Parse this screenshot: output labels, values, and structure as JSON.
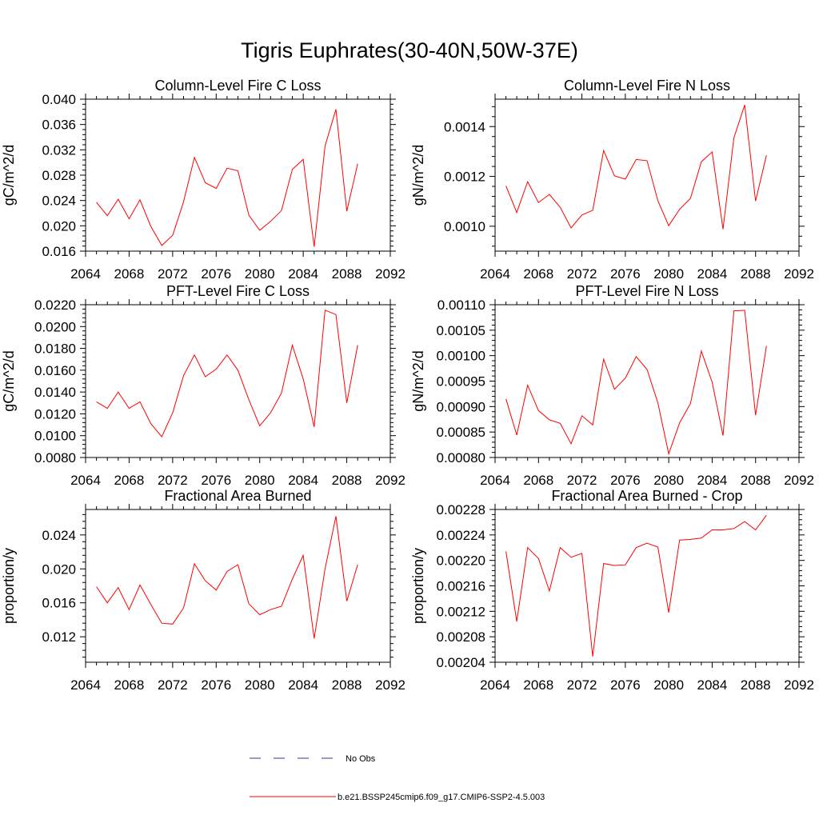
{
  "title": "Tigris Euphrates(30-40N,50W-37E)",
  "legend": [
    {
      "label": "No Obs",
      "color": "#3333aa",
      "dash": true
    },
    {
      "label": "b.e21.BSSP245cmip6.f09_g17.CMIP6-SSP2-4.5.003",
      "color": "#ff0000",
      "dash": false
    }
  ],
  "chart_data": [
    {
      "type": "line",
      "title": "Column-Level Fire C Loss",
      "ylabel": "gC/m^2/d",
      "xlim": [
        2064,
        2092
      ],
      "ylim": [
        0.016,
        0.04
      ],
      "xticks": [
        "2064",
        "2068",
        "2072",
        "2076",
        "2080",
        "2084",
        "2088",
        "2092"
      ],
      "yticks": [
        "0.016",
        "0.020",
        "0.024",
        "0.028",
        "0.032",
        "0.036",
        "0.040"
      ],
      "x": [
        2065,
        2066,
        2067,
        2068,
        2069,
        2070,
        2071,
        2072,
        2073,
        2074,
        2075,
        2076,
        2077,
        2078,
        2079,
        2080,
        2081,
        2082,
        2083,
        2084,
        2085,
        2086,
        2087,
        2088,
        2089
      ],
      "series": [
        {
          "color": "#ff0000",
          "values": [
            0.0237,
            0.0216,
            0.0242,
            0.0211,
            0.0241,
            0.0199,
            0.0169,
            0.0185,
            0.0238,
            0.0308,
            0.0268,
            0.0259,
            0.0291,
            0.0287,
            0.0217,
            0.0193,
            0.0207,
            0.0224,
            0.0289,
            0.0305,
            0.0167,
            0.0326,
            0.0384,
            0.0223,
            0.0298
          ]
        }
      ]
    },
    {
      "type": "line",
      "title": "Column-Level Fire N Loss",
      "ylabel": "gN/m^2/d",
      "xlim": [
        2064,
        2092
      ],
      "ylim": [
        0.0009,
        0.00151
      ],
      "xticks": [
        "2064",
        "2068",
        "2072",
        "2076",
        "2080",
        "2084",
        "2088",
        "2092"
      ],
      "yticks": [
        "0.0010",
        "0.0012",
        "0.0014"
      ],
      "x": [
        2065,
        2066,
        2067,
        2068,
        2069,
        2070,
        2071,
        2072,
        2073,
        2074,
        2075,
        2076,
        2077,
        2078,
        2079,
        2080,
        2081,
        2082,
        2083,
        2084,
        2085,
        2086,
        2087,
        2088,
        2089
      ],
      "series": [
        {
          "color": "#ff0000",
          "values": [
            0.001162,
            0.001055,
            0.001179,
            0.001095,
            0.001128,
            0.001076,
            0.000993,
            0.001045,
            0.001064,
            0.001304,
            0.001202,
            0.001189,
            0.001268,
            0.001263,
            0.001102,
            0.001002,
            0.001068,
            0.001112,
            0.001259,
            0.001298,
            0.000988,
            0.001355,
            0.001487,
            0.001101,
            0.001285
          ]
        }
      ]
    },
    {
      "type": "line",
      "title": "PFT-Level Fire C Loss",
      "ylabel": "gC/m^2/d",
      "xlim": [
        2064,
        2092
      ],
      "ylim": [
        0.008,
        0.022
      ],
      "xticks": [
        "2064",
        "2068",
        "2072",
        "2076",
        "2080",
        "2084",
        "2088",
        "2092"
      ],
      "yticks": [
        "0.0080",
        "0.0100",
        "0.0120",
        "0.0140",
        "0.0160",
        "0.0180",
        "0.0200",
        "0.0220"
      ],
      "x": [
        2065,
        2066,
        2067,
        2068,
        2069,
        2070,
        2071,
        2072,
        2073,
        2074,
        2075,
        2076,
        2077,
        2078,
        2079,
        2080,
        2081,
        2082,
        2083,
        2084,
        2085,
        2086,
        2087,
        2088,
        2089
      ],
      "series": [
        {
          "color": "#ff0000",
          "values": [
            0.0131,
            0.0125,
            0.014,
            0.0125,
            0.0131,
            0.0111,
            0.0099,
            0.0121,
            0.0155,
            0.0174,
            0.0154,
            0.0161,
            0.0174,
            0.016,
            0.0133,
            0.0109,
            0.0121,
            0.0139,
            0.0183,
            0.0152,
            0.0108,
            0.0215,
            0.0211,
            0.013,
            0.0183
          ]
        }
      ]
    },
    {
      "type": "line",
      "title": "PFT-Level Fire N Loss",
      "ylabel": "gN/m^2/d",
      "xlim": [
        2064,
        2092
      ],
      "ylim": [
        0.0008,
        0.0011
      ],
      "xticks": [
        "2064",
        "2068",
        "2072",
        "2076",
        "2080",
        "2084",
        "2088",
        "2092"
      ],
      "yticks": [
        "0.00080",
        "0.00085",
        "0.00090",
        "0.00095",
        "0.00100",
        "0.00105",
        "0.00110"
      ],
      "x": [
        2065,
        2066,
        2067,
        2068,
        2069,
        2070,
        2071,
        2072,
        2073,
        2074,
        2075,
        2076,
        2077,
        2078,
        2079,
        2080,
        2081,
        2082,
        2083,
        2084,
        2085,
        2086,
        2087,
        2088,
        2089
      ],
      "series": [
        {
          "color": "#ff0000",
          "values": [
            0.000915,
            0.000844,
            0.000942,
            0.000892,
            0.000874,
            0.000867,
            0.000827,
            0.000882,
            0.000864,
            0.000993,
            0.000934,
            0.000956,
            0.000998,
            0.000973,
            0.000907,
            0.000807,
            0.000868,
            0.000906,
            0.001009,
            0.000948,
            0.000843,
            0.001088,
            0.001089,
            0.000883,
            0.001019
          ]
        }
      ]
    },
    {
      "type": "line",
      "title": "Fractional Area Burned",
      "ylabel": "proportion/y",
      "xlim": [
        2064,
        2092
      ],
      "ylim": [
        0.009,
        0.027
      ],
      "xticks": [
        "2064",
        "2068",
        "2072",
        "2076",
        "2080",
        "2084",
        "2088",
        "2092"
      ],
      "yticks": [
        "0.012",
        "0.016",
        "0.020",
        "0.024"
      ],
      "x": [
        2065,
        2066,
        2067,
        2068,
        2069,
        2070,
        2071,
        2072,
        2073,
        2074,
        2075,
        2076,
        2077,
        2078,
        2079,
        2080,
        2081,
        2082,
        2083,
        2084,
        2085,
        2086,
        2087,
        2088,
        2089
      ],
      "series": [
        {
          "color": "#ff0000",
          "values": [
            0.0179,
            0.016,
            0.0178,
            0.0152,
            0.0181,
            0.0158,
            0.0136,
            0.0135,
            0.0154,
            0.0206,
            0.0186,
            0.0175,
            0.0197,
            0.0205,
            0.0159,
            0.0146,
            0.0152,
            0.0156,
            0.0188,
            0.0216,
            0.0118,
            0.02,
            0.0262,
            0.0162,
            0.0205
          ]
        }
      ]
    },
    {
      "type": "line",
      "title": "Fractional Area Burned - Crop",
      "ylabel": "proportion/y",
      "xlim": [
        2064,
        2092
      ],
      "ylim": [
        0.00204,
        0.00228
      ],
      "xticks": [
        "2064",
        "2068",
        "2072",
        "2076",
        "2080",
        "2084",
        "2088",
        "2092"
      ],
      "yticks": [
        "0.00204",
        "0.00208",
        "0.00212",
        "0.00216",
        "0.00220",
        "0.00224",
        "0.00228"
      ],
      "x": [
        2065,
        2066,
        2067,
        2068,
        2069,
        2070,
        2071,
        2072,
        2073,
        2074,
        2075,
        2076,
        2077,
        2078,
        2079,
        2080,
        2081,
        2082,
        2083,
        2084,
        2085,
        2086,
        2087,
        2088,
        2089
      ],
      "series": [
        {
          "color": "#ff0000",
          "values": [
            0.002214,
            0.002104,
            0.00222,
            0.002203,
            0.002152,
            0.00222,
            0.002205,
            0.002211,
            0.002049,
            0.002195,
            0.002192,
            0.002193,
            0.00222,
            0.002227,
            0.002221,
            0.002118,
            0.002232,
            0.002233,
            0.002235,
            0.002248,
            0.002248,
            0.00225,
            0.002261,
            0.002248,
            0.002271
          ]
        }
      ]
    }
  ]
}
